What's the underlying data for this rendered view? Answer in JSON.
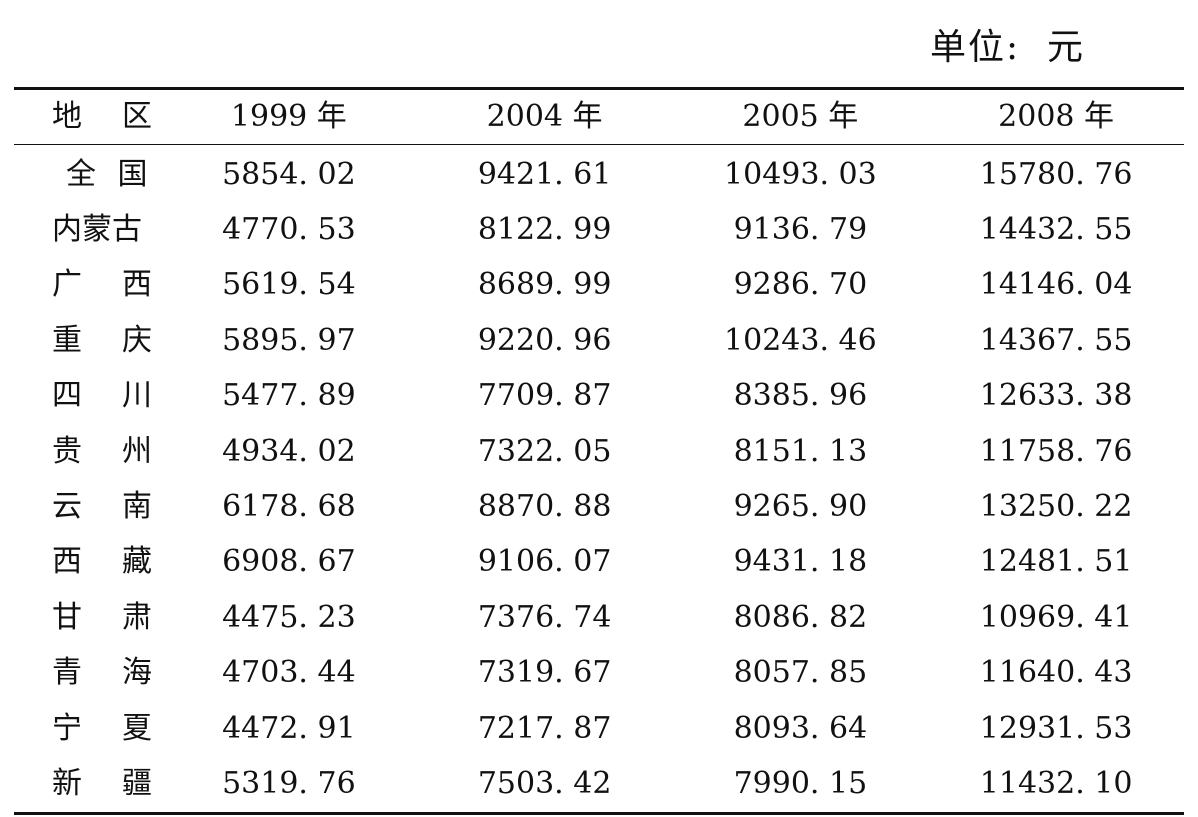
{
  "unit_label": "单位:  元",
  "table": {
    "headers": [
      "地　区",
      "1999 年",
      "2004 年",
      "2005 年",
      "2008 年"
    ],
    "rows": [
      {
        "region": "全 国",
        "y1999": "5854. 02",
        "y2004": "9421. 61",
        "y2005": "10493. 03",
        "y2008": "15780. 76"
      },
      {
        "region": "内蒙古",
        "y1999": "4770. 53",
        "y2004": "8122. 99",
        "y2005": "9136. 79",
        "y2008": "14432. 55"
      },
      {
        "region": "广西",
        "y1999": "5619. 54",
        "y2004": "8689. 99",
        "y2005": "9286. 70",
        "y2008": "14146. 04"
      },
      {
        "region": "重庆",
        "y1999": "5895. 97",
        "y2004": "9220. 96",
        "y2005": "10243. 46",
        "y2008": "14367. 55"
      },
      {
        "region": "四川",
        "y1999": "5477. 89",
        "y2004": "7709. 87",
        "y2005": "8385. 96",
        "y2008": "12633. 38"
      },
      {
        "region": "贵州",
        "y1999": "4934. 02",
        "y2004": "7322. 05",
        "y2005": "8151. 13",
        "y2008": "11758. 76"
      },
      {
        "region": "云南",
        "y1999": "6178. 68",
        "y2004": "8870. 88",
        "y2005": "9265. 90",
        "y2008": "13250. 22"
      },
      {
        "region": "西藏",
        "y1999": "6908. 67",
        "y2004": "9106. 07",
        "y2005": "9431. 18",
        "y2008": "12481. 51"
      },
      {
        "region": "甘肃",
        "y1999": "4475. 23",
        "y2004": "7376. 74",
        "y2005": "8086. 82",
        "y2008": "10969. 41"
      },
      {
        "region": "青海",
        "y1999": "4703. 44",
        "y2004": "7319. 67",
        "y2005": "8057. 85",
        "y2008": "11640. 43"
      },
      {
        "region": "宁夏",
        "y1999": "4472. 91",
        "y2004": "7217. 87",
        "y2005": "8093. 64",
        "y2008": "12931. 53"
      },
      {
        "region": "新疆",
        "y1999": "5319. 76",
        "y2004": "7503. 42",
        "y2005": "7990. 15",
        "y2008": "11432. 10"
      }
    ]
  }
}
